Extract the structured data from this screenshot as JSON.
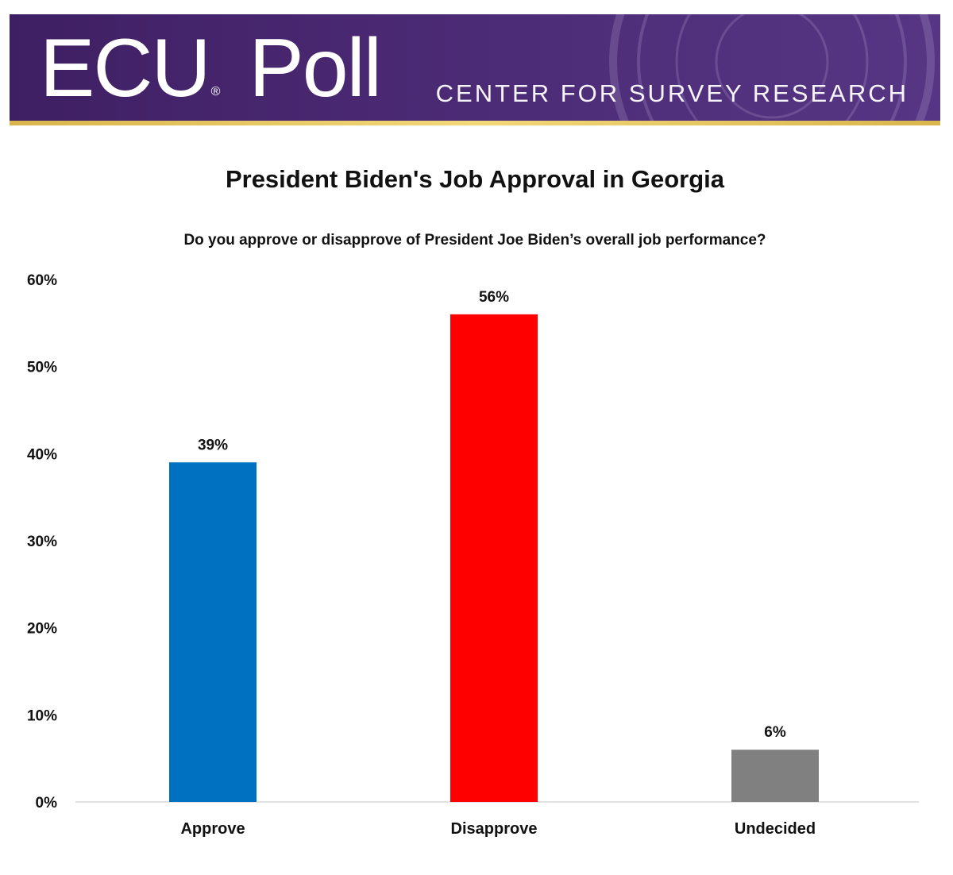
{
  "header": {
    "logo_text": "ECU",
    "logo_reg": "®",
    "logo_word": "Poll",
    "tagline": "CENTER FOR SURVEY RESEARCH",
    "banner_color": "#4b2a74",
    "stripe_color": "#e8c867"
  },
  "chart_data": {
    "type": "bar",
    "title": "President Biden's Job Approval in Georgia",
    "subtitle": "Do you approve or disapprove of President Joe Biden’s overall job performance?",
    "categories": [
      "Approve",
      "Disapprove",
      "Undecided"
    ],
    "values": [
      39,
      56,
      6
    ],
    "value_labels": [
      "39%",
      "56%",
      "6%"
    ],
    "colors": [
      "#0070c0",
      "#ff0000",
      "#808080"
    ],
    "ylim": [
      0,
      60
    ],
    "yticks": [
      0,
      10,
      20,
      30,
      40,
      50,
      60
    ],
    "ytick_labels": [
      "0%",
      "10%",
      "20%",
      "30%",
      "40%",
      "50%",
      "60%"
    ],
    "grid": false,
    "legend": "none"
  }
}
